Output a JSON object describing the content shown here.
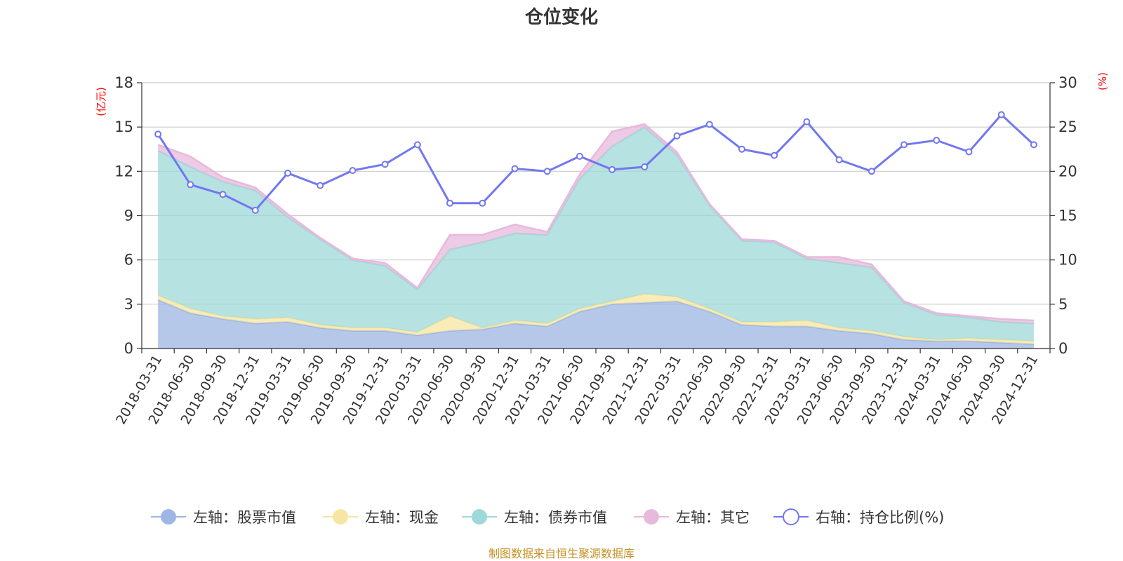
{
  "chart_data": {
    "type": "area",
    "title": "仓位变化",
    "left_axis_unit": "(亿元)",
    "right_axis_unit": "(%)",
    "source_note": "制图数据来自恒生聚源数据库",
    "categories": [
      "2018-03-31",
      "2018-06-30",
      "2018-09-30",
      "2018-12-31",
      "2019-03-31",
      "2019-06-30",
      "2019-09-30",
      "2019-12-31",
      "2020-03-31",
      "2020-06-30",
      "2020-09-30",
      "2020-12-31",
      "2021-03-31",
      "2021-06-30",
      "2021-09-30",
      "2021-12-31",
      "2022-03-31",
      "2022-06-30",
      "2022-09-30",
      "2022-12-31",
      "2023-03-31",
      "2023-06-30",
      "2023-09-30",
      "2023-12-31",
      "2024-03-31",
      "2024-06-30",
      "2024-09-30",
      "2024-12-31"
    ],
    "left_axis": {
      "min": 0,
      "max": 18,
      "ticks": [
        0,
        3,
        6,
        9,
        12,
        15,
        18
      ]
    },
    "right_axis": {
      "min": 0,
      "max": 30,
      "ticks": [
        0,
        5,
        10,
        15,
        20,
        25,
        30
      ]
    },
    "grid": true,
    "legend_position": "bottom",
    "stacked": true,
    "series": [
      {
        "name": "左轴：股票市值",
        "axis": "left",
        "kind": "area",
        "color": "#9db6e3",
        "values": [
          3.3,
          2.4,
          2.0,
          1.7,
          1.8,
          1.4,
          1.2,
          1.2,
          0.9,
          1.2,
          1.3,
          1.7,
          1.5,
          2.5,
          3.0,
          3.1,
          3.2,
          2.5,
          1.6,
          1.5,
          1.5,
          1.2,
          1.0,
          0.6,
          0.5,
          0.5,
          0.4,
          0.3
        ]
      },
      {
        "name": "左轴：现金",
        "axis": "left",
        "kind": "area",
        "color": "#f7e6a1",
        "values": [
          0.3,
          0.3,
          0.2,
          0.3,
          0.3,
          0.2,
          0.2,
          0.2,
          0.2,
          1.0,
          0.1,
          0.2,
          0.2,
          0.2,
          0.2,
          0.6,
          0.3,
          0.2,
          0.2,
          0.3,
          0.4,
          0.2,
          0.2,
          0.2,
          0.1,
          0.2,
          0.2,
          0.2
        ]
      },
      {
        "name": "左轴：债券市值",
        "axis": "left",
        "kind": "area",
        "color": "#9fd8d8",
        "values": [
          9.8,
          9.6,
          9.1,
          8.7,
          6.8,
          5.8,
          4.6,
          4.2,
          2.9,
          4.5,
          5.8,
          5.9,
          6.0,
          8.8,
          10.5,
          11.3,
          9.6,
          7.0,
          5.5,
          5.4,
          4.2,
          4.4,
          4.3,
          2.3,
          1.7,
          1.4,
          1.2,
          1.2
        ]
      },
      {
        "name": "左轴：其它",
        "axis": "left",
        "kind": "area",
        "color": "#e8b9dc",
        "values": [
          0.4,
          0.7,
          0.3,
          0.2,
          0.2,
          0.1,
          0.1,
          0.2,
          0.1,
          1.0,
          0.5,
          0.6,
          0.2,
          0.3,
          1.0,
          0.2,
          0.2,
          0.1,
          0.1,
          0.1,
          0.1,
          0.4,
          0.2,
          0.1,
          0.1,
          0.1,
          0.2,
          0.2
        ]
      },
      {
        "name": "右轴：持仓比例(%)",
        "axis": "right",
        "kind": "line",
        "color": "#7277f0",
        "values": [
          24.2,
          18.5,
          17.4,
          15.6,
          19.8,
          18.4,
          20.1,
          20.8,
          23.0,
          16.4,
          16.4,
          20.3,
          20.0,
          21.7,
          20.2,
          20.5,
          24.0,
          25.3,
          22.5,
          21.8,
          25.6,
          21.3,
          20.0,
          23.0,
          23.5,
          22.2,
          26.4,
          23.0
        ]
      }
    ]
  }
}
